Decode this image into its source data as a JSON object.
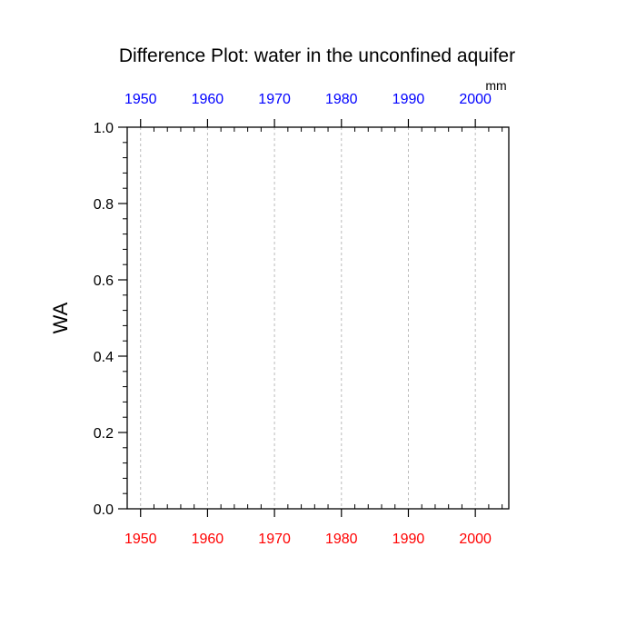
{
  "chart_data": {
    "type": "line",
    "title": "Difference Plot: water in the unconfined aquifer",
    "ylabel": "WA",
    "units": "mm",
    "xlim": [
      1948,
      2005
    ],
    "ylim": [
      0.0,
      1.0
    ],
    "x_ticks": [
      1950,
      1960,
      1970,
      1980,
      1990,
      2000
    ],
    "x_tick_labels": [
      "1950",
      "1960",
      "1970",
      "1980",
      "1990",
      "2000"
    ],
    "y_ticks": [
      0.0,
      0.2,
      0.4,
      0.6,
      0.8,
      1.0
    ],
    "y_tick_labels": [
      "0.0",
      "0.2",
      "0.4",
      "0.6",
      "0.8",
      "1.0"
    ],
    "x_gridlines": true,
    "grid_style": "dashed",
    "series": [],
    "colors": {
      "top_axis_labels": "#0000ff",
      "bottom_axis_labels": "#ff0000",
      "frame": "#000000",
      "grid": "#bbbbbb"
    }
  }
}
